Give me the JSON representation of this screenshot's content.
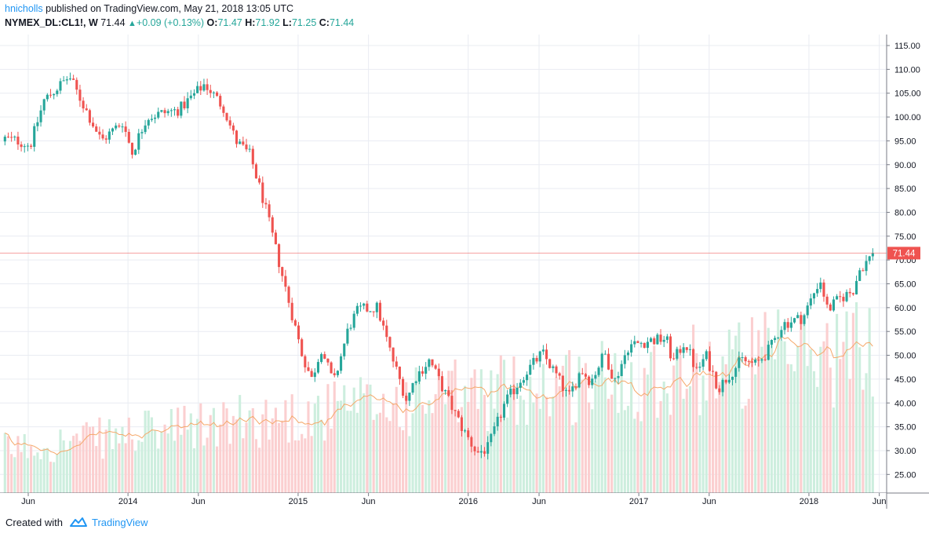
{
  "header": {
    "user": "hnicholls",
    "published": " published on TradingView.com, May 21, 2018 13:05 UTC",
    "symbol": "NYMEX_DL:CL1!, W",
    "last": "71.44",
    "change": "+0.09 (+0.13%)",
    "o_label": "O:",
    "o": "71.47",
    "h_label": "H:",
    "h": "71.92",
    "l_label": "L:",
    "l": "71.25",
    "c_label": "C:",
    "c": "71.44"
  },
  "footer": {
    "created": "Created with",
    "brand": "TradingView"
  },
  "colors": {
    "up": "#26a69a",
    "down": "#ef5350",
    "accent": "#2196f3",
    "price_line": "#ef5350"
  },
  "chart_data": {
    "type": "candlestick",
    "title": "",
    "price_label": "71.44",
    "y_ticks": [
      "115.00",
      "110.00",
      "105.00",
      "100.00",
      "95.00",
      "90.00",
      "85.00",
      "80.00",
      "75.00",
      "70.00",
      "65.00",
      "60.00",
      "55.00",
      "50.00",
      "45.00",
      "40.00",
      "35.00",
      "30.00",
      "25.00"
    ],
    "x_ticks": [
      "Jun",
      "2014",
      "Jun",
      "2015",
      "Jun",
      "2016",
      "Jun",
      "2017",
      "Jun",
      "2018",
      "Jun"
    ],
    "ylim": [
      21.5,
      116.5
    ],
    "grid": true,
    "volume_ma": true,
    "weekly_close_anchors": [
      [
        "2013-03-01",
        90.5
      ],
      [
        "2013-04-10",
        95.5
      ],
      [
        "2013-05-10",
        95.0
      ],
      [
        "2013-06-05",
        94.0
      ],
      [
        "2013-07-05",
        103.5
      ],
      [
        "2013-08-28",
        108.5
      ],
      [
        "2013-09-25",
        103.0
      ],
      [
        "2013-11-05",
        95.0
      ],
      [
        "2013-12-20",
        99.0
      ],
      [
        "2014-01-10",
        92.5
      ],
      [
        "2014-02-10",
        100.0
      ],
      [
        "2014-03-25",
        101.0
      ],
      [
        "2014-04-20",
        101.5
      ],
      [
        "2014-06-15",
        107.0
      ],
      [
        "2014-07-25",
        102.0
      ],
      [
        "2014-08-20",
        95.0
      ],
      [
        "2014-09-20",
        92.0
      ],
      [
        "2014-10-20",
        82.0
      ],
      [
        "2014-11-30",
        66.0
      ],
      [
        "2015-01-10",
        50.0
      ],
      [
        "2015-01-30",
        45.0
      ],
      [
        "2015-02-20",
        51.5
      ],
      [
        "2015-03-18",
        44.0
      ],
      [
        "2015-04-20",
        56.0
      ],
      [
        "2015-05-10",
        59.5
      ],
      [
        "2015-06-20",
        60.0
      ],
      [
        "2015-07-20",
        50.0
      ],
      [
        "2015-08-22",
        40.5
      ],
      [
        "2015-09-10",
        45.5
      ],
      [
        "2015-10-10",
        49.0
      ],
      [
        "2015-11-15",
        41.5
      ],
      [
        "2015-12-20",
        34.5
      ],
      [
        "2016-01-20",
        29.5
      ],
      [
        "2016-02-12",
        30.5
      ],
      [
        "2016-03-20",
        40.0
      ],
      [
        "2016-04-30",
        46.0
      ],
      [
        "2016-06-08",
        50.5
      ],
      [
        "2016-07-10",
        45.5
      ],
      [
        "2016-08-03",
        41.0
      ],
      [
        "2016-08-30",
        47.0
      ],
      [
        "2016-09-20",
        44.5
      ],
      [
        "2016-10-20",
        50.5
      ],
      [
        "2016-11-10",
        44.5
      ],
      [
        "2016-12-10",
        52.0
      ],
      [
        "2017-01-20",
        53.0
      ],
      [
        "2017-03-01",
        53.5
      ],
      [
        "2017-03-15",
        48.5
      ],
      [
        "2017-04-10",
        53.0
      ],
      [
        "2017-05-05",
        46.5
      ],
      [
        "2017-05-25",
        50.0
      ],
      [
        "2017-06-21",
        43.0
      ],
      [
        "2017-07-10",
        45.5
      ],
      [
        "2017-08-10",
        49.0
      ],
      [
        "2017-09-10",
        48.0
      ],
      [
        "2017-10-10",
        51.5
      ],
      [
        "2017-11-05",
        56.5
      ],
      [
        "2017-12-20",
        58.0
      ],
      [
        "2018-01-25",
        66.0
      ],
      [
        "2018-02-10",
        59.5
      ],
      [
        "2018-03-10",
        62.0
      ],
      [
        "2018-04-05",
        63.5
      ],
      [
        "2018-04-20",
        68.0
      ],
      [
        "2018-05-21",
        71.44
      ]
    ],
    "volume_axis_note": "volume bars shaded green on up weeks and red on down weeks, with moving average"
  }
}
